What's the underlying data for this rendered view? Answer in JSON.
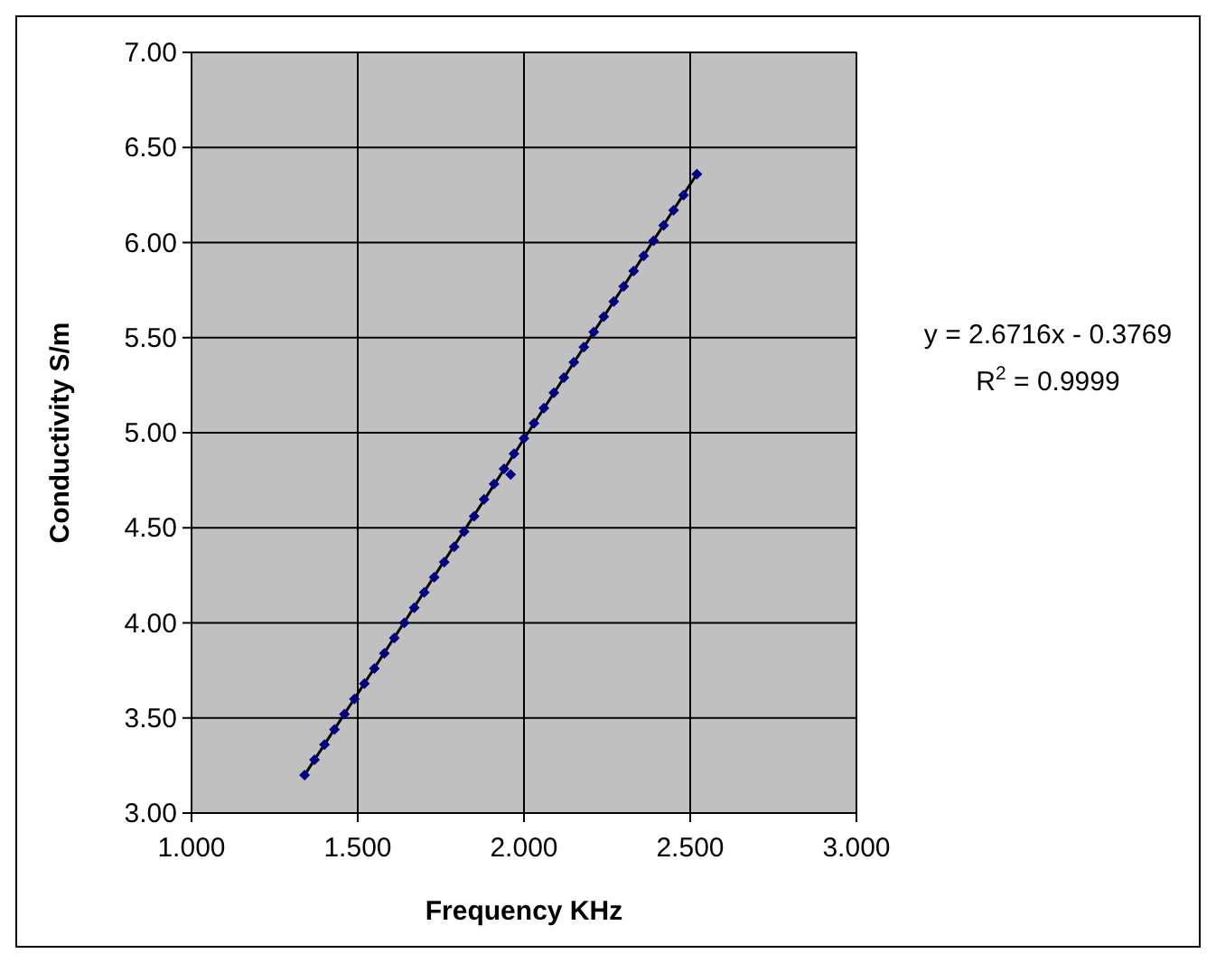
{
  "chart_data": {
    "type": "scatter",
    "xlabel": "Frequency KHz",
    "ylabel": "Conductivity S/m",
    "xlim": [
      1,
      3
    ],
    "xticks": [
      {
        "value": 1,
        "label": "1.000"
      },
      {
        "value": 1.5,
        "label": "1.500"
      },
      {
        "value": 2,
        "label": "2.000"
      },
      {
        "value": 2.5,
        "label": "2.500"
      },
      {
        "value": 3,
        "label": "3.000"
      }
    ],
    "ylim": [
      3,
      7
    ],
    "yticks": [
      {
        "value": 3,
        "label": "3.00"
      },
      {
        "value": 3.5,
        "label": "3.50"
      },
      {
        "value": 4,
        "label": "4.00"
      },
      {
        "value": 4.5,
        "label": "4.50"
      },
      {
        "value": 5,
        "label": "5.00"
      },
      {
        "value": 5.5,
        "label": "5.50"
      },
      {
        "value": 6,
        "label": "6.00"
      },
      {
        "value": 6.5,
        "label": "6.50"
      },
      {
        "value": 7,
        "label": "7.00"
      }
    ],
    "grid": true,
    "marker": "diamond",
    "series": [
      {
        "color": "#000080",
        "x": [
          1.34,
          1.37,
          1.4,
          1.43,
          1.46,
          1.49,
          1.52,
          1.55,
          1.58,
          1.61,
          1.64,
          1.67,
          1.7,
          1.73,
          1.76,
          1.79,
          1.82,
          1.85,
          1.88,
          1.91,
          1.94,
          1.96,
          1.97,
          2.0,
          2.03,
          2.06,
          2.09,
          2.12,
          2.15,
          2.18,
          2.21,
          2.24,
          2.27,
          2.3,
          2.33,
          2.36,
          2.39,
          2.42,
          2.45,
          2.48,
          2.52
        ],
        "values": [
          3.2,
          3.28,
          3.36,
          3.44,
          3.52,
          3.6,
          3.68,
          3.76,
          3.84,
          3.92,
          4.0,
          4.08,
          4.16,
          4.24,
          4.32,
          4.4,
          4.48,
          4.56,
          4.65,
          4.73,
          4.81,
          4.78,
          4.89,
          4.97,
          5.05,
          5.13,
          5.21,
          5.29,
          5.37,
          5.45,
          5.53,
          5.61,
          5.69,
          5.77,
          5.85,
          5.93,
          6.01,
          6.09,
          6.17,
          6.25,
          6.36
        ]
      },
      {
        "type": "line",
        "color": "#000000",
        "marker": "none",
        "line_style": "solid",
        "x": [
          1.34,
          2.52
        ],
        "values": [
          3.2,
          6.36
        ]
      }
    ],
    "annotations": [
      "y = 2.6716x - 0.3769",
      "R$^{2}$ = 0.9999"
    ]
  }
}
